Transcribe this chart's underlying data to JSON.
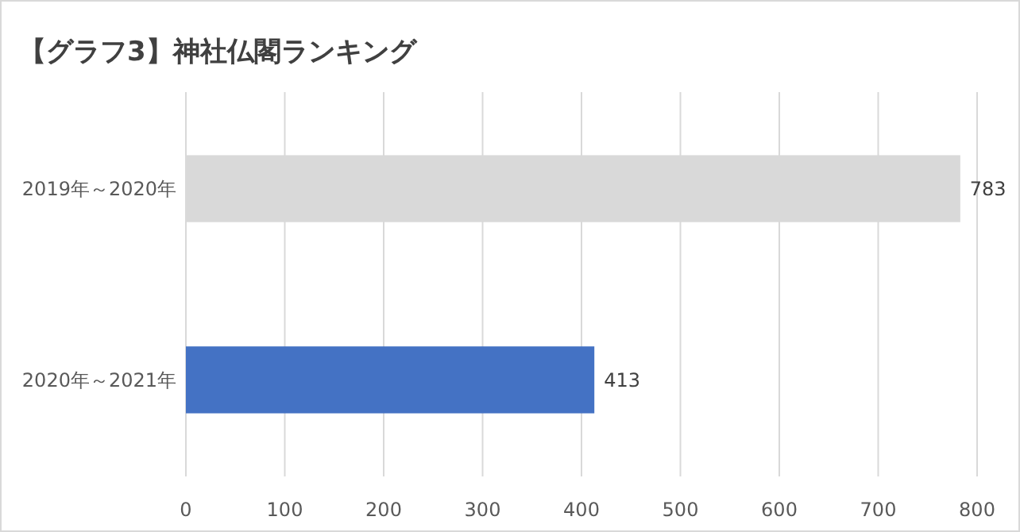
{
  "chart_data": {
    "type": "bar",
    "orientation": "horizontal",
    "title": "【グラフ3】神社仏閣ランキング",
    "categories": [
      "2019年～2020年",
      "2020年～2021年"
    ],
    "values": [
      783,
      413
    ],
    "colors": [
      "#d9d9d9",
      "#4472c4"
    ],
    "xlim": [
      0,
      800
    ],
    "xticks": [
      0,
      100,
      200,
      300,
      400,
      500,
      600,
      700,
      800
    ],
    "grid": "x",
    "data_labels": true
  }
}
